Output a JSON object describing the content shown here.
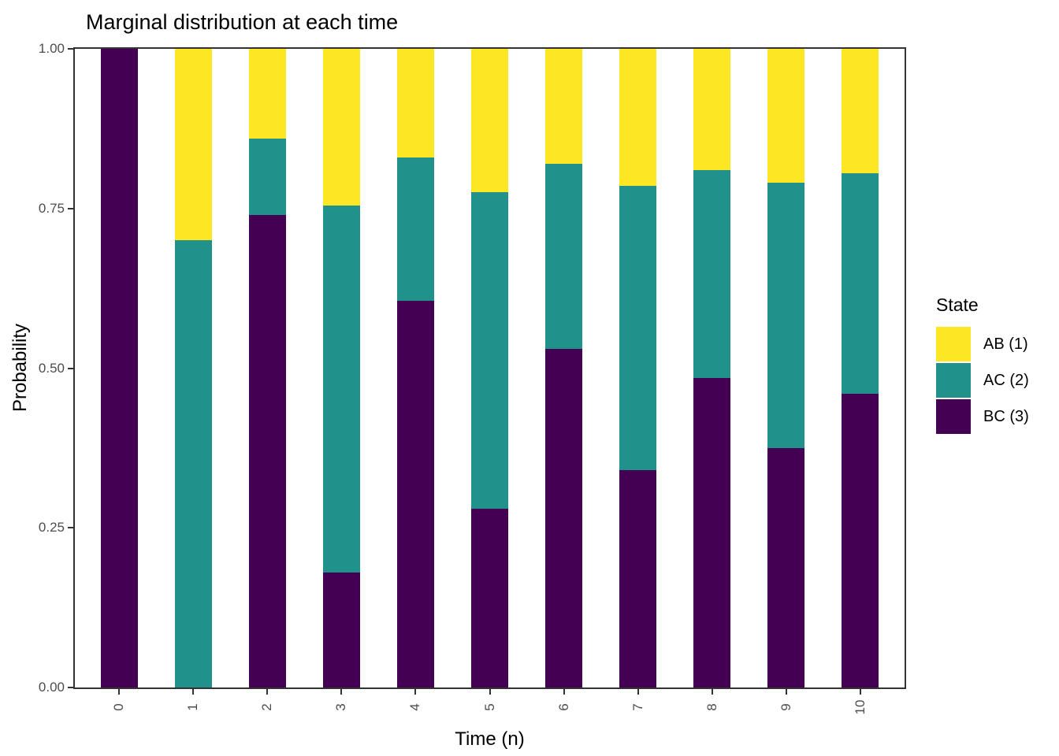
{
  "chart_data": {
    "type": "bar",
    "stacked": true,
    "title": "Marginal distribution at each time",
    "xlabel": "Time (n)",
    "ylabel": "Probability",
    "legend_title": "State",
    "legend_position": "right",
    "grid": false,
    "ylim": [
      0,
      1
    ],
    "categories": [
      "0",
      "1",
      "2",
      "3",
      "4",
      "5",
      "6",
      "7",
      "8",
      "9",
      "10"
    ],
    "series": [
      {
        "name": "AB (1)",
        "color": "#FDE725",
        "values": [
          0.0,
          0.3,
          0.14,
          0.245,
          0.17,
          0.225,
          0.18,
          0.215,
          0.19,
          0.21,
          0.195
        ]
      },
      {
        "name": "AC (2)",
        "color": "#21918C",
        "values": [
          0.0,
          0.7,
          0.12,
          0.575,
          0.225,
          0.495,
          0.29,
          0.445,
          0.325,
          0.415,
          0.345
        ]
      },
      {
        "name": "BC (3)",
        "color": "#440154",
        "values": [
          1.0,
          0.0,
          0.74,
          0.18,
          0.605,
          0.28,
          0.53,
          0.34,
          0.485,
          0.375,
          0.46
        ]
      }
    ],
    "stack_order_bottom_to_top": [
      "BC (3)",
      "AC (2)",
      "AB (1)"
    ],
    "y_ticks": [
      {
        "label": "0.00",
        "value": 0.0
      },
      {
        "label": "0.25",
        "value": 0.25
      },
      {
        "label": "0.50",
        "value": 0.5
      },
      {
        "label": "0.75",
        "value": 0.75
      },
      {
        "label": "1.00",
        "value": 1.0
      }
    ]
  }
}
